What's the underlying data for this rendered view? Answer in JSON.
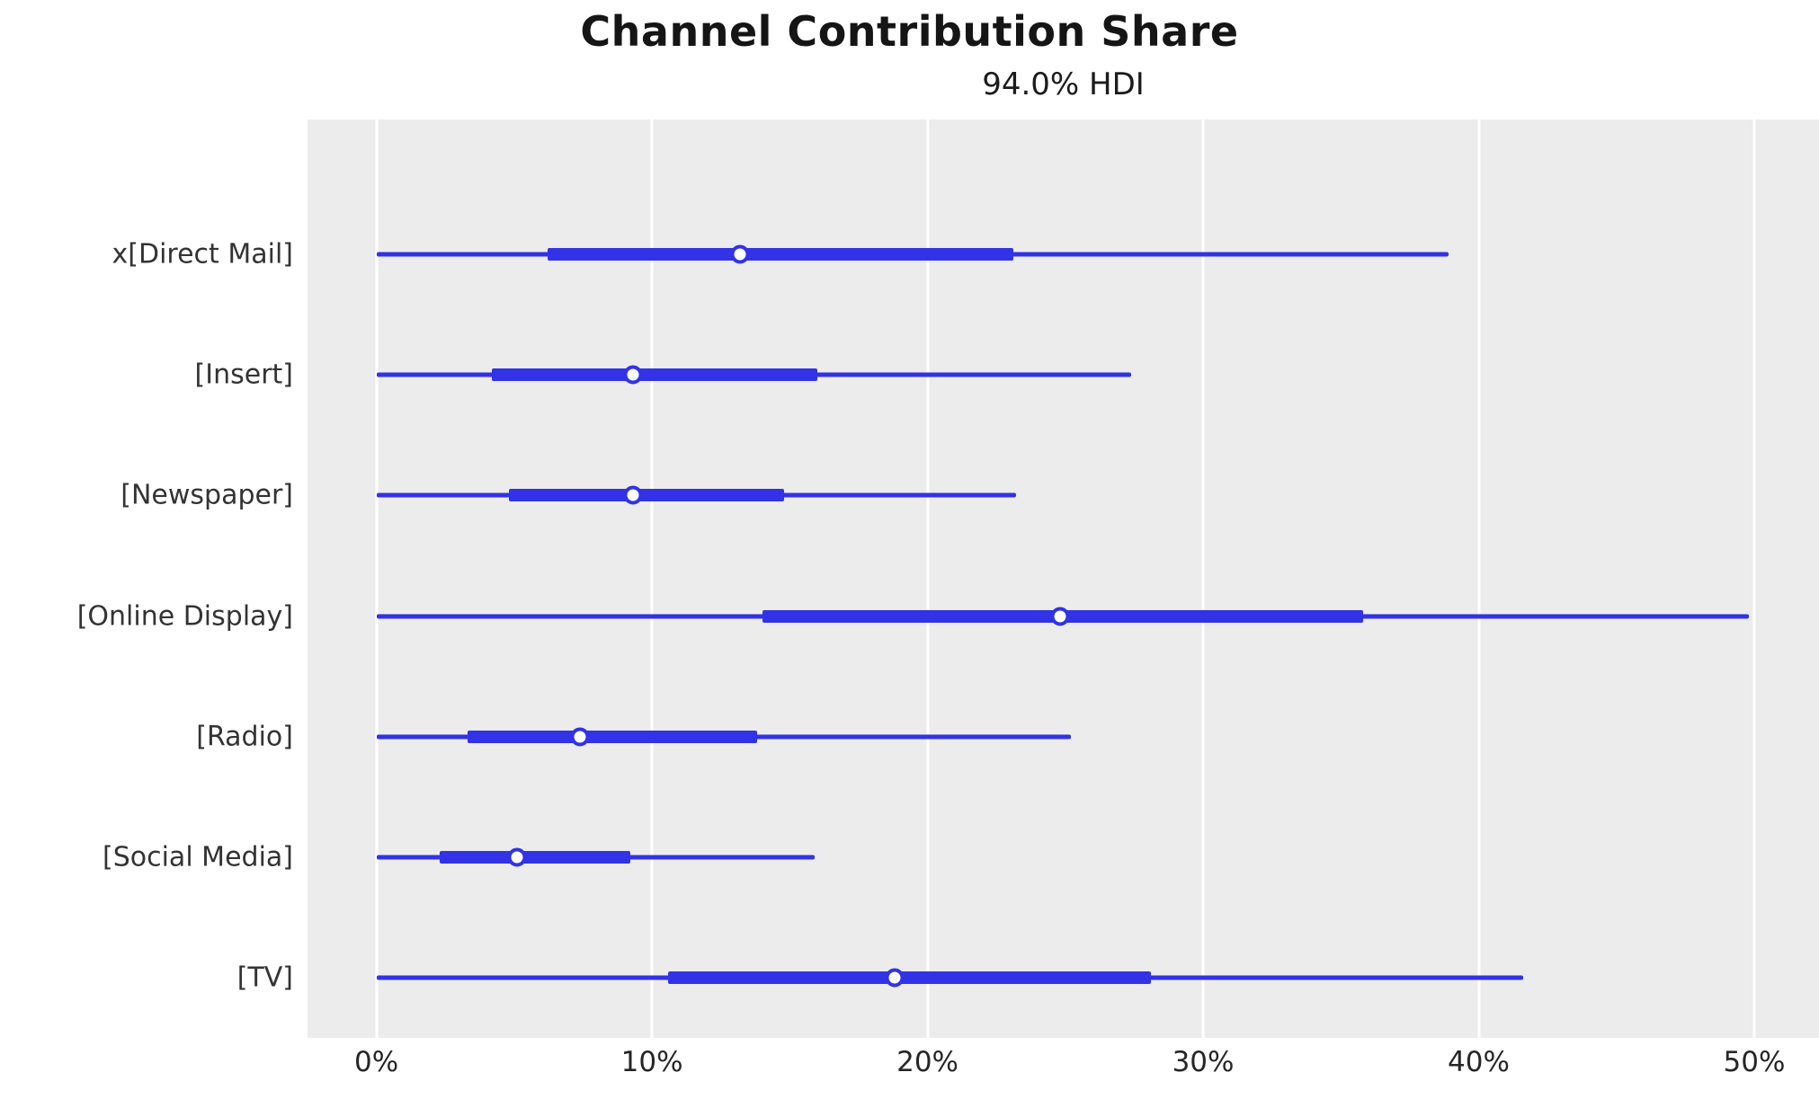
{
  "chart_data": {
    "type": "forest",
    "title": "Channel Contribution Share",
    "subtitle": "94.0% HDI",
    "hdi_probability": "94.0%",
    "xlabel": "",
    "ylabel": "",
    "xlim": [
      -2.5,
      52.35
    ],
    "grid": "vertical-white-on-gray",
    "x_ticks": [
      {
        "value": 0,
        "label": "0%"
      },
      {
        "value": 10,
        "label": "10%"
      },
      {
        "value": 20,
        "label": "20%"
      },
      {
        "value": 30,
        "label": "30%"
      },
      {
        "value": 40,
        "label": "40%"
      },
      {
        "value": 50,
        "label": "50%"
      }
    ],
    "rows": [
      {
        "label": "x[Direct Mail]",
        "hdi_low": 0.0,
        "hdi_high": 38.9,
        "band_low": 6.2,
        "band_high": 23.1,
        "point": 13.2
      },
      {
        "label": "[Insert]",
        "hdi_low": 0.0,
        "hdi_high": 27.4,
        "band_low": 4.2,
        "band_high": 16.0,
        "point": 9.3
      },
      {
        "label": "[Newspaper]",
        "hdi_low": 0.0,
        "hdi_high": 23.2,
        "band_low": 4.8,
        "band_high": 14.8,
        "point": 9.3
      },
      {
        "label": "[Online Display]",
        "hdi_low": 0.0,
        "hdi_high": 49.8,
        "band_low": 14.0,
        "band_high": 35.8,
        "point": 24.8
      },
      {
        "label": "[Radio]",
        "hdi_low": 0.0,
        "hdi_high": 25.2,
        "band_low": 3.3,
        "band_high": 13.8,
        "point": 7.4
      },
      {
        "label": "[Social Media]",
        "hdi_low": 0.0,
        "hdi_high": 15.9,
        "band_low": 2.3,
        "band_high": 9.2,
        "point": 5.1
      },
      {
        "label": "[TV]",
        "hdi_low": 0.0,
        "hdi_high": 41.6,
        "band_low": 10.6,
        "band_high": 28.1,
        "point": 18.8
      }
    ],
    "colors": {
      "line": "#3232e6",
      "marker_fill": "#ffffff",
      "plot_background": "#ececec",
      "gridline": "#ffffff",
      "title": "#151515",
      "tick_label": "#262626",
      "row_label": "#333333"
    }
  }
}
